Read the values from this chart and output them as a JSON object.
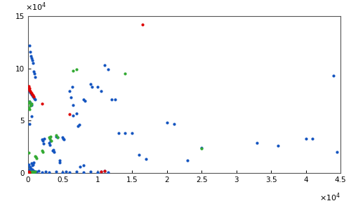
{
  "title": "",
  "xlim": [
    0,
    45000
  ],
  "ylim": [
    0,
    15000
  ],
  "x_tick_step": 5000,
  "y_tick_step": 5000,
  "background_color": "#ffffff",
  "blue_points": [
    [
      200,
      12200
    ],
    [
      300,
      11600
    ],
    [
      400,
      11200
    ],
    [
      500,
      11000
    ],
    [
      600,
      10800
    ],
    [
      700,
      10500
    ],
    [
      800,
      9700
    ],
    [
      900,
      9500
    ],
    [
      1000,
      9200
    ],
    [
      200,
      7800
    ],
    [
      300,
      7700
    ],
    [
      400,
      7600
    ],
    [
      500,
      7500
    ],
    [
      600,
      7400
    ],
    [
      700,
      7300
    ],
    [
      800,
      7200
    ],
    [
      900,
      7100
    ],
    [
      1000,
      7000
    ],
    [
      200,
      6800
    ],
    [
      300,
      6700
    ],
    [
      400,
      6600
    ],
    [
      500,
      6500
    ],
    [
      200,
      4700
    ],
    [
      500,
      5400
    ],
    [
      2000,
      3200
    ],
    [
      2100,
      3100
    ],
    [
      2200,
      2800
    ],
    [
      2300,
      3300
    ],
    [
      3000,
      2900
    ],
    [
      3100,
      2700
    ],
    [
      3200,
      3100
    ],
    [
      4000,
      3500
    ],
    [
      4200,
      3400
    ],
    [
      5000,
      3400
    ],
    [
      5100,
      3300
    ],
    [
      5200,
      3200
    ],
    [
      6000,
      7800
    ],
    [
      6200,
      7200
    ],
    [
      6400,
      8200
    ],
    [
      6500,
      6500
    ],
    [
      7000,
      5700
    ],
    [
      7200,
      4500
    ],
    [
      7400,
      4600
    ],
    [
      8000,
      7000
    ],
    [
      8200,
      6900
    ],
    [
      9000,
      8500
    ],
    [
      9200,
      8200
    ],
    [
      10000,
      8200
    ],
    [
      10500,
      7800
    ],
    [
      11000,
      10300
    ],
    [
      11500,
      9900
    ],
    [
      12000,
      7000
    ],
    [
      12500,
      7000
    ],
    [
      13000,
      3800
    ],
    [
      14000,
      3800
    ],
    [
      15000,
      3800
    ],
    [
      16000,
      1700
    ],
    [
      17000,
      1300
    ],
    [
      20000,
      4800
    ],
    [
      21000,
      4700
    ],
    [
      23000,
      1200
    ],
    [
      25000,
      2400
    ],
    [
      33000,
      2900
    ],
    [
      36000,
      2600
    ],
    [
      40000,
      3300
    ],
    [
      41000,
      3300
    ],
    [
      44000,
      9300
    ],
    [
      44500,
      2000
    ],
    [
      100,
      200
    ],
    [
      200,
      300
    ],
    [
      300,
      400
    ],
    [
      400,
      100
    ],
    [
      500,
      200
    ],
    [
      600,
      300
    ],
    [
      700,
      100
    ],
    [
      800,
      200
    ],
    [
      900,
      50
    ],
    [
      1000,
      100
    ],
    [
      1200,
      100
    ],
    [
      1500,
      200
    ],
    [
      2000,
      50
    ],
    [
      2500,
      100
    ],
    [
      3000,
      50
    ],
    [
      4000,
      100
    ],
    [
      5000,
      50
    ],
    [
      5500,
      100
    ],
    [
      6000,
      50
    ],
    [
      7000,
      100
    ],
    [
      8000,
      50
    ],
    [
      9000,
      100
    ],
    [
      10000,
      50
    ],
    [
      10500,
      100
    ],
    [
      11000,
      200
    ],
    [
      11500,
      50
    ],
    [
      100,
      800
    ],
    [
      200,
      600
    ],
    [
      300,
      500
    ],
    [
      400,
      400
    ],
    [
      500,
      900
    ],
    [
      600,
      700
    ],
    [
      700,
      800
    ],
    [
      800,
      1000
    ],
    [
      4500,
      1000
    ],
    [
      4600,
      1200
    ],
    [
      3500,
      2100
    ],
    [
      3600,
      2200
    ],
    [
      3700,
      2000
    ],
    [
      6500,
      5500
    ],
    [
      7500,
      600
    ],
    [
      8000,
      700
    ]
  ],
  "red_points": [
    [
      100,
      8300
    ],
    [
      200,
      7900
    ],
    [
      300,
      7800
    ],
    [
      400,
      7700
    ],
    [
      500,
      7600
    ],
    [
      600,
      7500
    ],
    [
      700,
      7400
    ],
    [
      800,
      7300
    ],
    [
      100,
      8000
    ],
    [
      200,
      8100
    ],
    [
      2000,
      6600
    ],
    [
      6000,
      5600
    ],
    [
      10500,
      100
    ],
    [
      11000,
      200
    ],
    [
      16500,
      14200
    ],
    [
      100,
      100
    ],
    [
      200,
      50
    ]
  ],
  "green_points": [
    [
      100,
      6200
    ],
    [
      200,
      6100
    ],
    [
      300,
      6400
    ],
    [
      400,
      6500
    ],
    [
      500,
      6600
    ],
    [
      100,
      6700
    ],
    [
      200,
      6800
    ],
    [
      1000,
      1600
    ],
    [
      1100,
      1500
    ],
    [
      1200,
      1400
    ],
    [
      2000,
      2100
    ],
    [
      2100,
      2000
    ],
    [
      3000,
      3400
    ],
    [
      3100,
      3300
    ],
    [
      3200,
      3500
    ],
    [
      3300,
      3100
    ],
    [
      4000,
      3600
    ],
    [
      4200,
      3400
    ],
    [
      6500,
      9800
    ],
    [
      7000,
      9900
    ],
    [
      14000,
      9500
    ],
    [
      25000,
      2300
    ],
    [
      100,
      1900
    ],
    [
      100,
      50
    ],
    [
      200,
      100
    ],
    [
      300,
      50
    ],
    [
      500,
      100
    ],
    [
      600,
      50
    ],
    [
      700,
      100
    ],
    [
      800,
      50
    ],
    [
      1000,
      100
    ]
  ]
}
